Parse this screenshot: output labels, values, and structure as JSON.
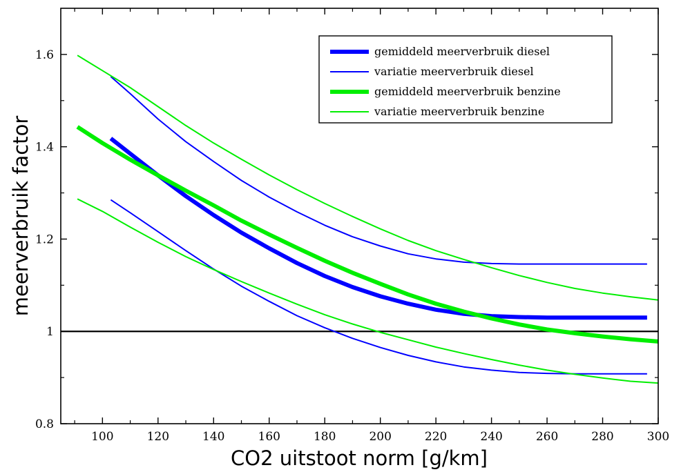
{
  "chart_data": {
    "type": "line",
    "title": "",
    "xlabel": "CO2 uitstoot norm [g/km]",
    "ylabel": "meerverbruik factor",
    "xlim": [
      85,
      300
    ],
    "ylim": [
      0.8,
      1.7
    ],
    "x_ticks": [
      100,
      120,
      140,
      160,
      180,
      200,
      220,
      240,
      260,
      280,
      300
    ],
    "x_tick_labels": [
      "100",
      "120",
      "140",
      "160",
      "180",
      "200",
      "220",
      "240",
      "260",
      "280",
      "300"
    ],
    "y_ticks": [
      0.8,
      1.0,
      1.2,
      1.4,
      1.6
    ],
    "y_tick_labels": [
      "0.8",
      "1",
      "1.2",
      "1.4",
      "1.6"
    ],
    "grid": false,
    "legend_position": "top-right",
    "reference_line": {
      "y": 1.0,
      "color": "#000000"
    },
    "series": [
      {
        "name": "gemiddeld meerverbruik diesel",
        "color": "#0000ff",
        "style": "thick",
        "x": [
          103,
          110,
          120,
          130,
          140,
          150,
          160,
          170,
          180,
          190,
          200,
          210,
          220,
          230,
          240,
          250,
          260,
          270,
          280,
          290,
          296
        ],
        "y": [
          1.418,
          1.385,
          1.338,
          1.293,
          1.252,
          1.214,
          1.18,
          1.148,
          1.12,
          1.096,
          1.076,
          1.06,
          1.047,
          1.038,
          1.033,
          1.031,
          1.03,
          1.03,
          1.03,
          1.03,
          1.03
        ]
      },
      {
        "name": "variatie meerverbruik diesel",
        "color": "#0000ff",
        "style": "thin",
        "x": [
          103,
          110,
          120,
          130,
          140,
          150,
          160,
          170,
          180,
          190,
          200,
          210,
          220,
          230,
          240,
          250,
          260,
          270,
          280,
          290,
          296
        ],
        "y": [
          1.552,
          1.515,
          1.46,
          1.411,
          1.368,
          1.327,
          1.291,
          1.259,
          1.23,
          1.205,
          1.185,
          1.168,
          1.157,
          1.15,
          1.147,
          1.146,
          1.146,
          1.146,
          1.146,
          1.146,
          1.146
        ]
      },
      {
        "name": "",
        "color": "#0000ff",
        "style": "thin",
        "x": [
          103,
          110,
          120,
          130,
          140,
          150,
          160,
          170,
          180,
          190,
          200,
          210,
          220,
          230,
          240,
          250,
          260,
          270,
          280,
          290,
          296
        ],
        "y": [
          1.285,
          1.257,
          1.216,
          1.175,
          1.135,
          1.098,
          1.065,
          1.034,
          1.008,
          0.985,
          0.965,
          0.948,
          0.934,
          0.923,
          0.916,
          0.911,
          0.909,
          0.908,
          0.908,
          0.908,
          0.908
        ]
      },
      {
        "name": "gemiddeld meerverbruik benzine",
        "color": "#00ee00",
        "style": "thick",
        "x": [
          91,
          100,
          110,
          120,
          130,
          140,
          150,
          160,
          170,
          180,
          190,
          200,
          210,
          220,
          230,
          240,
          250,
          260,
          270,
          280,
          290,
          300
        ],
        "y": [
          1.443,
          1.408,
          1.372,
          1.338,
          1.305,
          1.273,
          1.24,
          1.21,
          1.181,
          1.153,
          1.127,
          1.103,
          1.08,
          1.06,
          1.043,
          1.028,
          1.015,
          1.004,
          0.996,
          0.989,
          0.983,
          0.978
        ]
      },
      {
        "name": "variatie meerverbruik benzine",
        "color": "#00ee00",
        "style": "thin",
        "x": [
          91,
          100,
          110,
          120,
          130,
          140,
          150,
          160,
          170,
          180,
          190,
          200,
          210,
          220,
          230,
          240,
          250,
          260,
          270,
          280,
          290,
          300
        ],
        "y": [
          1.598,
          1.565,
          1.528,
          1.487,
          1.446,
          1.408,
          1.373,
          1.339,
          1.307,
          1.277,
          1.249,
          1.222,
          1.197,
          1.175,
          1.156,
          1.138,
          1.121,
          1.106,
          1.093,
          1.083,
          1.075,
          1.068
        ]
      },
      {
        "name": "",
        "color": "#00ee00",
        "style": "thin",
        "x": [
          91,
          100,
          110,
          120,
          130,
          140,
          150,
          160,
          170,
          180,
          190,
          200,
          210,
          220,
          230,
          240,
          250,
          260,
          270,
          280,
          290,
          300
        ],
        "y": [
          1.287,
          1.26,
          1.226,
          1.193,
          1.162,
          1.134,
          1.108,
          1.083,
          1.059,
          1.036,
          1.016,
          0.998,
          0.982,
          0.966,
          0.952,
          0.939,
          0.927,
          0.916,
          0.907,
          0.899,
          0.892,
          0.888
        ]
      }
    ]
  }
}
